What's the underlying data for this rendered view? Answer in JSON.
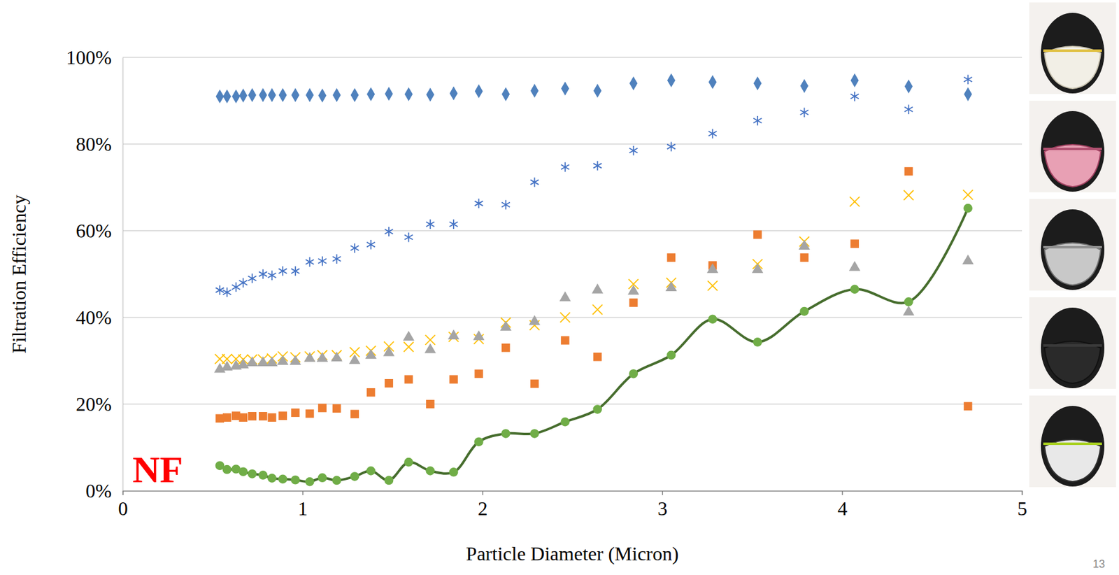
{
  "chart_data": {
    "type": "scatter",
    "x_label": "Particle Diameter (Micron)",
    "y_label": "Filtration Efficiency",
    "annotations": [
      "NF",
      "13"
    ],
    "x": [
      0.54,
      0.58,
      0.63,
      0.67,
      0.72,
      0.78,
      0.83,
      0.89,
      0.96,
      1.04,
      1.11,
      1.19,
      1.29,
      1.38,
      1.48,
      1.59,
      1.71,
      1.84,
      1.98,
      2.13,
      2.29,
      2.46,
      2.64,
      2.84,
      3.05,
      3.28,
      3.53,
      3.79,
      4.07,
      4.37,
      4.7
    ],
    "series": [
      {
        "color": "#4f81bd",
        "marker": "diamond",
        "line_style": "none",
        "values": [
          91,
          91,
          91,
          91.2,
          91.3,
          91.3,
          91.3,
          91.3,
          91.3,
          91.3,
          91.2,
          91.3,
          91.3,
          91.5,
          91.6,
          91.5,
          91.4,
          91.7,
          92.2,
          91.5,
          92.3,
          92.8,
          92.3,
          94,
          94.7,
          94.3,
          94,
          93.4,
          94.7,
          93.3,
          91.5
        ]
      },
      {
        "color": "#4472c4",
        "marker": "asterisk",
        "line_style": "none",
        "values": [
          46.3,
          45.8,
          47,
          48,
          49,
          50,
          49.7,
          50.7,
          50.7,
          52.8,
          53,
          53.5,
          56,
          56.8,
          59.8,
          58.5,
          61.5,
          61.5,
          66.3,
          66,
          71.2,
          74.7,
          75,
          78.5,
          79.4,
          82.4,
          85.4,
          87.3,
          91,
          88,
          94.9
        ]
      },
      {
        "color": "#ed7d31",
        "marker": "square",
        "line_style": "none",
        "values": [
          16.7,
          16.9,
          17.3,
          16.9,
          17.2,
          17.2,
          16.9,
          17.3,
          18,
          17.8,
          19.1,
          19,
          17.7,
          22.7,
          24.8,
          25.7,
          20,
          25.7,
          27,
          33,
          24.7,
          34.7,
          30.9,
          43.4,
          53.8,
          52,
          59.1,
          53.8,
          57,
          73.7,
          19.5
        ]
      },
      {
        "color": "#ffc000",
        "marker": "x",
        "line_style": "none",
        "values": [
          30.4,
          30.4,
          30.4,
          30.3,
          30.3,
          30.3,
          30.5,
          31,
          30.8,
          31,
          31.3,
          31.3,
          32,
          32.3,
          33.3,
          33.2,
          34.8,
          35.5,
          35,
          38.8,
          38.2,
          40,
          41.8,
          47.7,
          48,
          47.3,
          52.3,
          57.5,
          66.7,
          68.2,
          68.3
        ]
      },
      {
        "color": "#a5a5a5",
        "marker": "triangle",
        "line_style": "none",
        "values": [
          28,
          28.5,
          28.7,
          29,
          29.5,
          29.5,
          29.5,
          29.8,
          29.8,
          30.5,
          30.5,
          30.6,
          30,
          31.2,
          31.8,
          35.4,
          32.5,
          35.7,
          35.5,
          37.7,
          39,
          44.5,
          46.3,
          46,
          46.8,
          51,
          51,
          56.4,
          51.5,
          41.2,
          53
        ]
      },
      {
        "color": "#70ad47",
        "marker": "circle",
        "line_style": "solid",
        "values": [
          5.8,
          4.9,
          5,
          4.4,
          3.9,
          3.6,
          2.9,
          2.7,
          2.5,
          2.1,
          3,
          2.4,
          3.3,
          4.6,
          2.4,
          6.6,
          4.6,
          4.3,
          11.3,
          13.2,
          13.2,
          15.9,
          18.8,
          27,
          31.3,
          39.6,
          34.3,
          41.4,
          46.5,
          43.6,
          65.2
        ]
      }
    ],
    "xlim": [
      0,
      5
    ],
    "xticks": [
      0,
      1,
      2,
      3,
      4,
      5
    ],
    "ylim": [
      0,
      100
    ],
    "yticks": [
      {
        "value": 0,
        "label": "0%"
      },
      {
        "value": 20,
        "label": "20%"
      },
      {
        "value": 40,
        "label": "40%"
      },
      {
        "value": 60,
        "label": "60%"
      },
      {
        "value": 80,
        "label": "80%"
      },
      {
        "value": 100,
        "label": "100%"
      }
    ],
    "grid": true
  }
}
